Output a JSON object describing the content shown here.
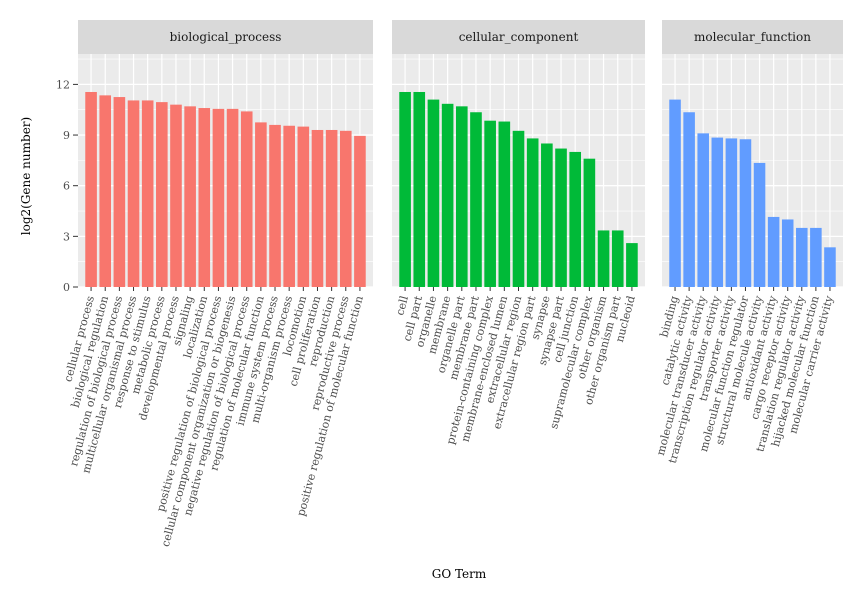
{
  "chart_data": {
    "type": "bar",
    "xlabel": "GO Term",
    "ylabel": "log2(Gene number)",
    "ylim": [
      0,
      13.8
    ],
    "yticks": [
      0,
      3,
      6,
      9,
      12
    ],
    "grid": true,
    "legend": "none",
    "panels": [
      {
        "name": "biological_process",
        "color": "#F8766D",
        "categories": [
          "cellular process",
          "biological regulation",
          "regulation of biological process",
          "multicellular organismal process",
          "response to stimulus",
          "metabolic process",
          "developmental process",
          "signaling",
          "localization",
          "positive regulation of biological process",
          "cellular component organization or biogenesis",
          "negative regulation of biological process",
          "regulation of molecular function",
          "immune system process",
          "multi-organism process",
          "locomotion",
          "cell proliferation",
          "reproduction",
          "reproductive process",
          "positive regulation of molecular function"
        ],
        "values": [
          11.55,
          11.35,
          11.25,
          11.05,
          11.05,
          10.95,
          10.8,
          10.7,
          10.6,
          10.55,
          10.55,
          10.4,
          9.75,
          9.6,
          9.55,
          9.5,
          9.3,
          9.3,
          9.25,
          8.95
        ]
      },
      {
        "name": "cellular_component",
        "color": "#00BA38",
        "categories": [
          "cell",
          "cell part",
          "organelle",
          "membrane",
          "organelle part",
          "membrane part",
          "protein-containing complex",
          "membrane-enclosed lumen",
          "extracellular region",
          "extracellular region part",
          "synapse",
          "synapse part",
          "cell junction",
          "supramolecular complex",
          "other organism",
          "other organism part",
          "nucleoid"
        ],
        "values": [
          11.55,
          11.55,
          11.1,
          10.85,
          10.7,
          10.35,
          9.85,
          9.8,
          9.25,
          8.8,
          8.5,
          8.2,
          8.0,
          7.6,
          3.35,
          3.35,
          2.6
        ]
      },
      {
        "name": "molecular_function",
        "color": "#619CFF",
        "categories": [
          "binding",
          "catalytic activity",
          "molecular transducer activity",
          "transcription regulator activity",
          "transporter activity",
          "molecular function regulator",
          "structural molecule activity",
          "antioxidant activity",
          "cargo receptor activity",
          "translation regulator activity",
          "hijacked molecular function",
          "molecular carrier activity"
        ],
        "values": [
          11.1,
          10.35,
          9.1,
          8.85,
          8.8,
          8.75,
          7.35,
          4.15,
          4.0,
          3.5,
          3.5,
          2.35
        ]
      }
    ]
  }
}
